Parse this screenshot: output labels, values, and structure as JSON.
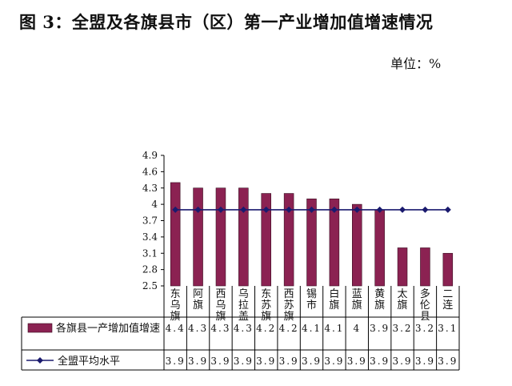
{
  "title": "图 3：全盟及各旗县市（区）第一产业增加值增速情况",
  "unit_label": "单位：%",
  "chart_data": {
    "type": "bar",
    "categories": [
      "东乌旗",
      "阿旗",
      "西乌旗",
      "乌拉盖",
      "东苏旗",
      "西苏旗",
      "锡市",
      "白旗",
      "蓝旗",
      "黄旗",
      "太旗",
      "多伦县",
      "二连"
    ],
    "category_lines": [
      [
        "东",
        "乌",
        "旗"
      ],
      [
        "阿",
        "旗"
      ],
      [
        "西",
        "乌",
        "旗"
      ],
      [
        "乌",
        "拉",
        "盖"
      ],
      [
        "东",
        "苏",
        "旗"
      ],
      [
        "西",
        "苏",
        "旗"
      ],
      [
        "锡",
        "市"
      ],
      [
        "白",
        "旗"
      ],
      [
        "蓝",
        "旗"
      ],
      [
        "黄",
        "旗"
      ],
      [
        "太",
        "旗"
      ],
      [
        "多",
        "伦",
        "县"
      ],
      [
        "二",
        "连"
      ]
    ],
    "series": [
      {
        "name": "各旗县一产增加值增速",
        "type": "bar",
        "color": "#8b2252",
        "values": [
          4.4,
          4.3,
          4.3,
          4.3,
          4.2,
          4.2,
          4.1,
          4.1,
          4,
          3.9,
          3.2,
          3.2,
          3.1
        ],
        "value_labels": [
          "4.4",
          "4.3",
          "4.3",
          "4.3",
          "4.2",
          "4.2",
          "4.1",
          "4.1",
          "4",
          "3.9",
          "3.2",
          "3.2",
          "3.1"
        ]
      },
      {
        "name": "全盟平均水平",
        "type": "line",
        "color": "#1a1a6e",
        "values": [
          3.9,
          3.9,
          3.9,
          3.9,
          3.9,
          3.9,
          3.9,
          3.9,
          3.9,
          3.9,
          3.9,
          3.9,
          3.9
        ],
        "value_labels": [
          "3.9",
          "3.9",
          "3.9",
          "3.9",
          "3.9",
          "3.9",
          "3.9",
          "3.9",
          "3.9",
          "3.9",
          "3.9",
          "3.9",
          "3.9"
        ]
      }
    ],
    "yticks": [
      "2.5",
      "2.8",
      "3.1",
      "3.4",
      "3.7",
      "4",
      "4.3",
      "4.6",
      "4.9"
    ],
    "ylim": [
      2.5,
      4.9
    ],
    "grid": false,
    "legend": "data-table"
  }
}
